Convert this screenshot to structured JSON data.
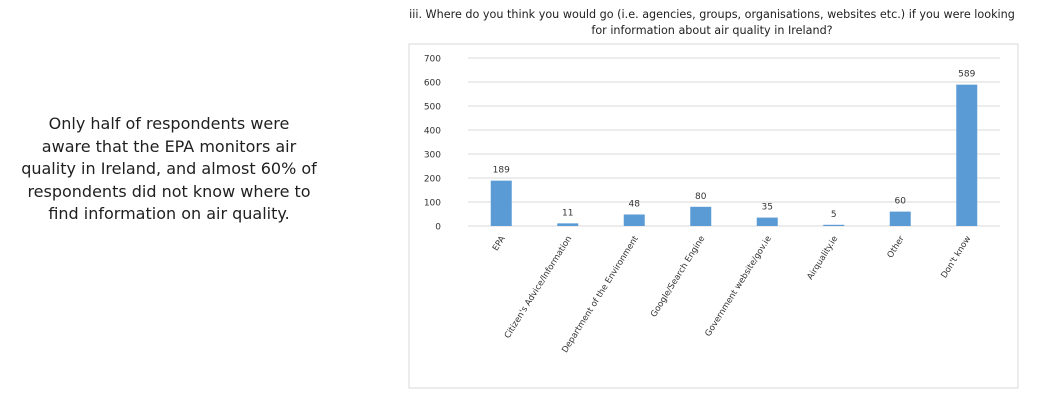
{
  "summary": {
    "lines": [
      "Only half of respondents were",
      "aware that the EPA monitors air",
      "quality in Ireland, and almost 60% of",
      "respondents did not know where to",
      "find information on air quality."
    ]
  },
  "chart_data": {
    "type": "bar",
    "title": "iii. Where do you think you would go (i.e. agencies, groups, organisations, websites etc.) if you were looking for information about air quality in Ireland?",
    "title_lines": [
      "iii. Where do you think you would go (i.e. agencies, groups, organisations, websites etc.) if you were looking",
      "for information about air quality in Ireland?"
    ],
    "categories": [
      "EPA",
      "Citizen's Advice/Information",
      "Department of the Environment",
      "Google/Search Engine",
      "Government website/gov.ie",
      "Airquality.ie",
      "Other",
      "Don't know"
    ],
    "values": [
      189,
      11,
      48,
      80,
      35,
      5,
      60,
      589
    ],
    "ylim": [
      0,
      700
    ],
    "yticks": [
      0,
      100,
      200,
      300,
      400,
      500,
      600,
      700
    ],
    "grid": true,
    "bar_color": "#5b9bd5",
    "gridline_color": "#d9d9d9",
    "border_color": "#d9d9d9",
    "xlabel": "",
    "ylabel": ""
  }
}
